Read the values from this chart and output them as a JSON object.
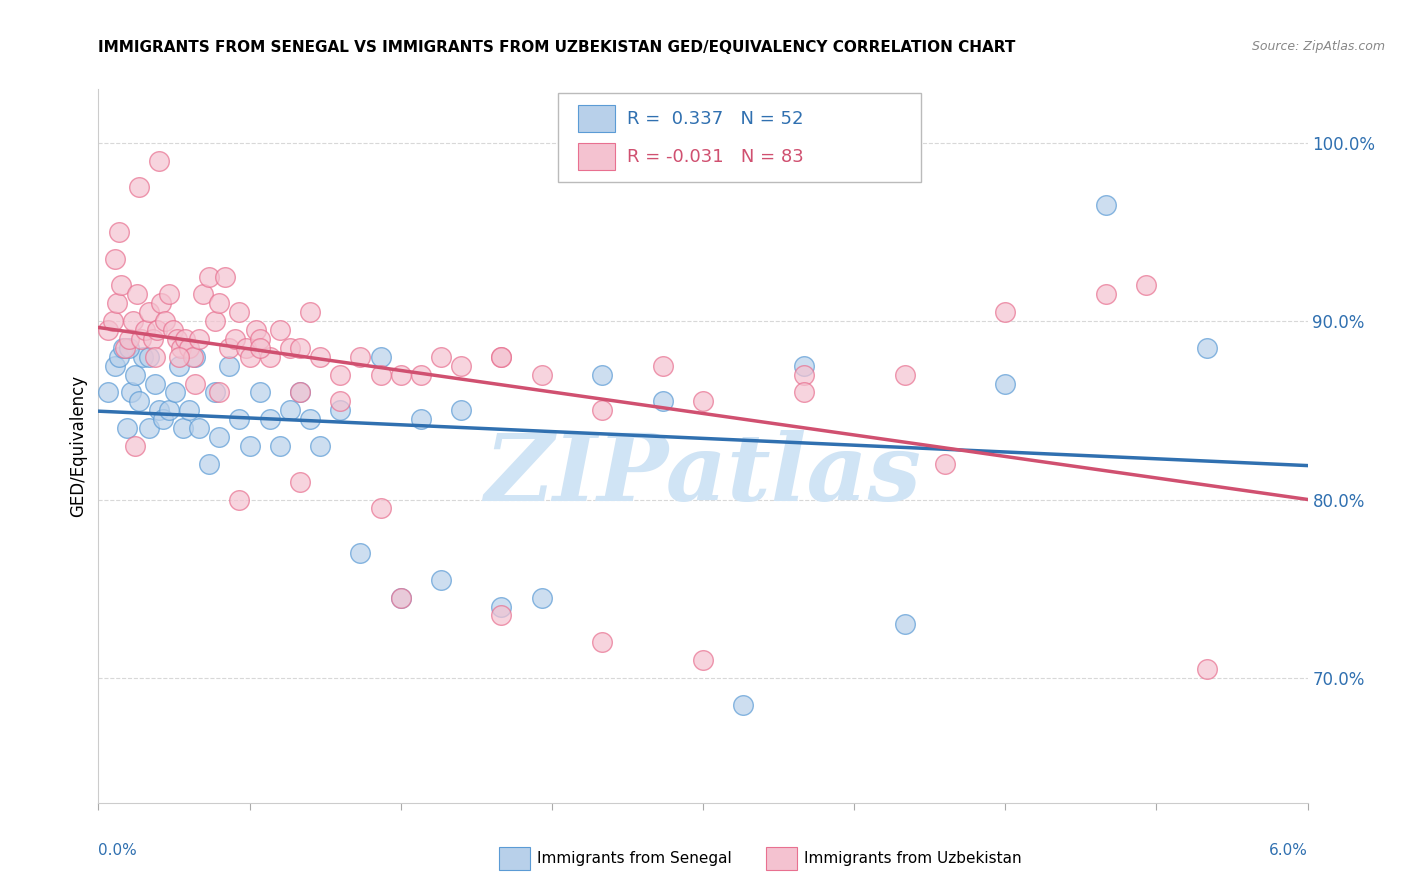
{
  "title": "IMMIGRANTS FROM SENEGAL VS IMMIGRANTS FROM UZBEKISTAN GED/EQUIVALENCY CORRELATION CHART",
  "source": "Source: ZipAtlas.com",
  "ylabel": "GED/Equivalency",
  "xmin": 0.0,
  "xmax": 6.0,
  "ymin": 63.0,
  "ymax": 103.0,
  "yticks_right": [
    70.0,
    80.0,
    90.0,
    100.0
  ],
  "ytick_labels_right": [
    "70.0%",
    "80.0%",
    "90.0%",
    "100.0%"
  ],
  "blue_fill": "#b8d0ea",
  "blue_edge": "#5b9bd5",
  "blue_line": "#3070b0",
  "pink_fill": "#f4c2d0",
  "pink_edge": "#e87090",
  "pink_line": "#d05070",
  "watermark_color": "#d0e4f5",
  "grid_color": "#d8d8d8",
  "senegal_x": [
    0.05,
    0.08,
    0.1,
    0.12,
    0.14,
    0.16,
    0.18,
    0.2,
    0.22,
    0.25,
    0.28,
    0.3,
    0.32,
    0.35,
    0.38,
    0.4,
    0.42,
    0.45,
    0.48,
    0.5,
    0.55,
    0.58,
    0.6,
    0.65,
    0.7,
    0.75,
    0.8,
    0.85,
    0.9,
    0.95,
    1.0,
    1.05,
    1.1,
    1.2,
    1.3,
    1.4,
    1.5,
    1.6,
    1.7,
    1.8,
    2.0,
    2.2,
    2.5,
    2.8,
    3.2,
    3.5,
    4.0,
    4.5,
    5.0,
    5.5,
    0.15,
    0.25
  ],
  "senegal_y": [
    86.0,
    87.5,
    88.0,
    88.5,
    84.0,
    86.0,
    87.0,
    85.5,
    88.0,
    84.0,
    86.5,
    85.0,
    84.5,
    85.0,
    86.0,
    87.5,
    84.0,
    85.0,
    88.0,
    84.0,
    82.0,
    86.0,
    83.5,
    87.5,
    84.5,
    83.0,
    86.0,
    84.5,
    83.0,
    85.0,
    86.0,
    84.5,
    83.0,
    85.0,
    77.0,
    88.0,
    74.5,
    84.5,
    75.5,
    85.0,
    74.0,
    74.5,
    87.0,
    85.5,
    68.5,
    87.5,
    73.0,
    86.5,
    96.5,
    88.5,
    88.5,
    88.0
  ],
  "uzbekistan_x": [
    0.05,
    0.07,
    0.09,
    0.11,
    0.13,
    0.15,
    0.17,
    0.19,
    0.21,
    0.23,
    0.25,
    0.27,
    0.29,
    0.31,
    0.33,
    0.35,
    0.37,
    0.39,
    0.41,
    0.43,
    0.45,
    0.47,
    0.5,
    0.52,
    0.55,
    0.58,
    0.6,
    0.63,
    0.65,
    0.68,
    0.7,
    0.73,
    0.75,
    0.78,
    0.8,
    0.85,
    0.9,
    0.95,
    1.0,
    1.05,
    1.1,
    1.2,
    1.3,
    1.4,
    1.5,
    1.6,
    1.7,
    1.8,
    2.0,
    2.2,
    2.5,
    2.8,
    3.0,
    3.5,
    4.0,
    4.5,
    5.0,
    5.2,
    0.1,
    0.2,
    0.3,
    0.4,
    0.6,
    0.8,
    1.0,
    1.2,
    1.5,
    2.0,
    2.5,
    3.0,
    4.2,
    5.5,
    0.08,
    0.18,
    0.28,
    0.48,
    0.7,
    1.0,
    1.4,
    2.0,
    3.5
  ],
  "uzbekistan_y": [
    89.5,
    90.0,
    91.0,
    92.0,
    88.5,
    89.0,
    90.0,
    91.5,
    89.0,
    89.5,
    90.5,
    89.0,
    89.5,
    91.0,
    90.0,
    91.5,
    89.5,
    89.0,
    88.5,
    89.0,
    88.5,
    88.0,
    89.0,
    91.5,
    92.5,
    90.0,
    91.0,
    92.5,
    88.5,
    89.0,
    90.5,
    88.5,
    88.0,
    89.5,
    89.0,
    88.0,
    89.5,
    88.5,
    88.5,
    90.5,
    88.0,
    87.0,
    88.0,
    87.0,
    87.0,
    87.0,
    88.0,
    87.5,
    88.0,
    87.0,
    85.0,
    87.5,
    85.5,
    87.0,
    87.0,
    90.5,
    91.5,
    92.0,
    95.0,
    97.5,
    99.0,
    88.0,
    86.0,
    88.5,
    86.0,
    85.5,
    74.5,
    73.5,
    72.0,
    71.0,
    82.0,
    70.5,
    93.5,
    83.0,
    88.0,
    86.5,
    80.0,
    81.0,
    79.5,
    88.0,
    86.0
  ]
}
